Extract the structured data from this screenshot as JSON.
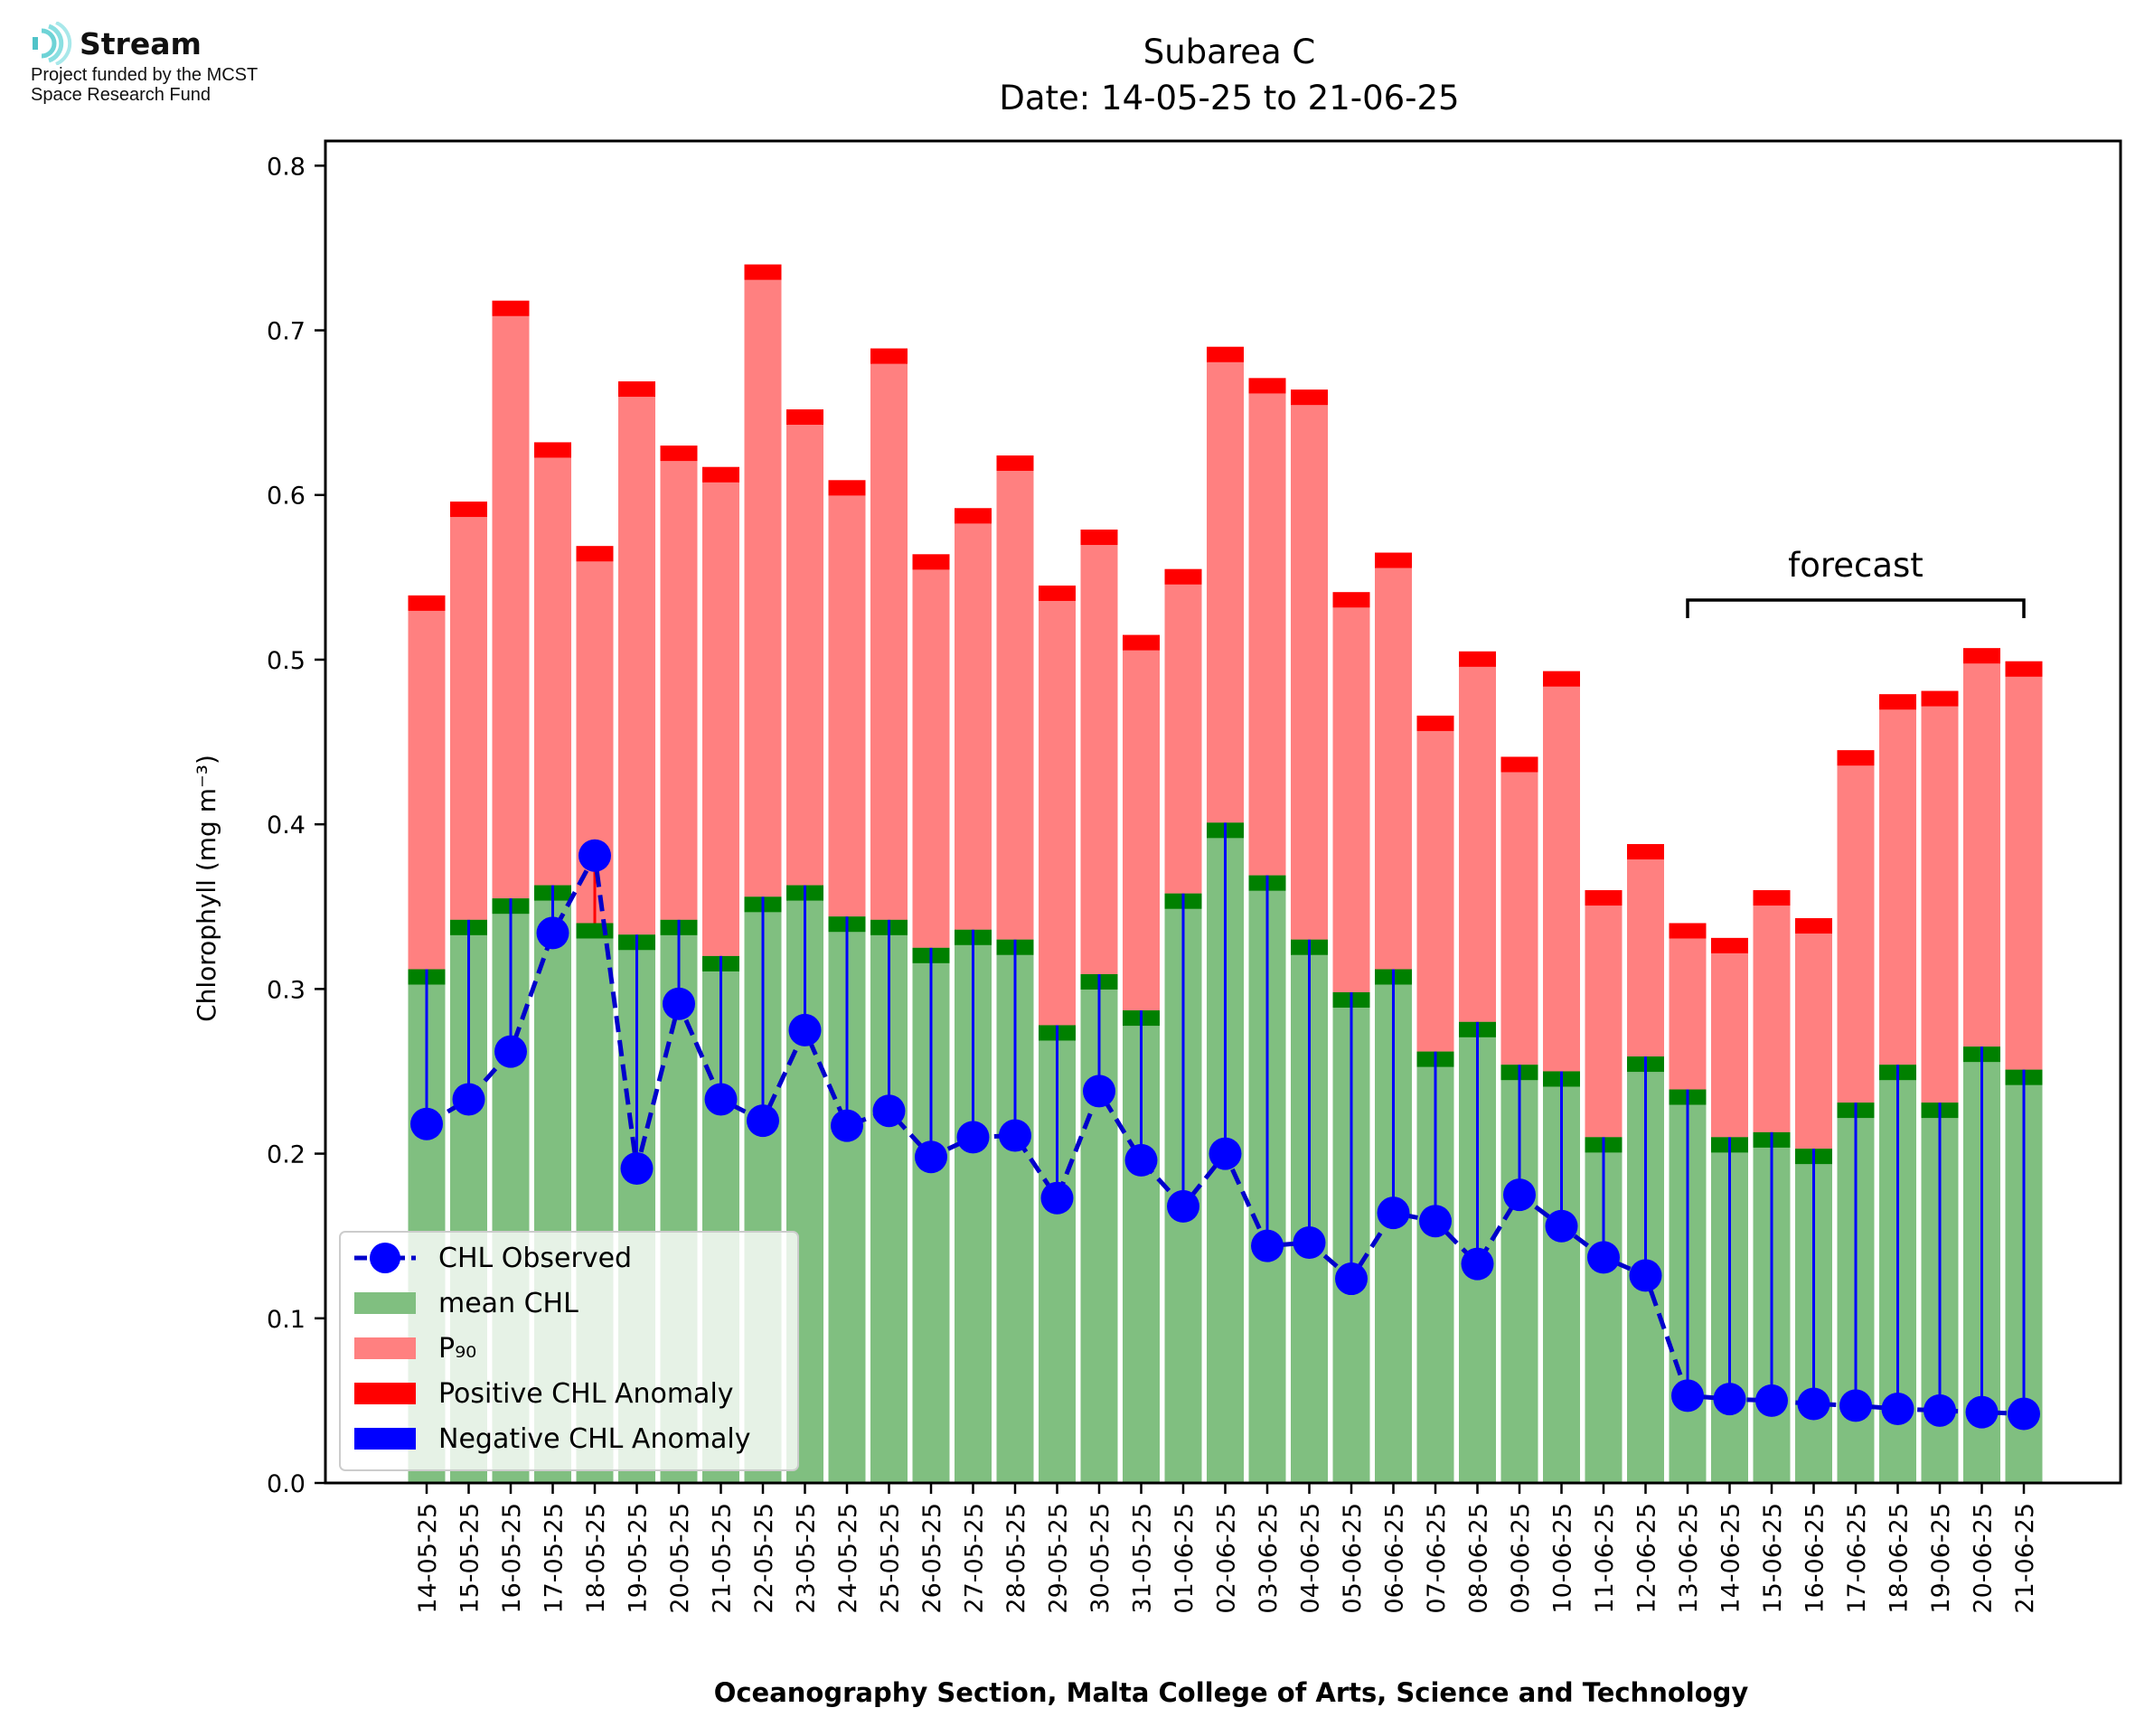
{
  "logo": {
    "name": "Stream",
    "funding_line1": "Project funded by the MCST",
    "funding_line2": "Space Research Fund"
  },
  "colors": {
    "mean_bar": "#80bf80",
    "p90_bar": "#ff8080",
    "mean_cap": "#008000",
    "positive_anomaly": "#ff0000",
    "negative_anomaly": "#0000ff",
    "observed_line": "#0000cc"
  },
  "chart_data": {
    "type": "bar",
    "title": "Subarea C",
    "subtitle": "Date: 14-05-25 to 21-06-25",
    "xlabel": "Oceanography Section, Malta College of Arts, Science and Technology",
    "ylabel": "Chlorophyll (mg m⁻³)",
    "ylim": [
      0,
      0.815
    ],
    "yticks": [
      "0.0",
      "0.1",
      "0.2",
      "0.3",
      "0.4",
      "0.5",
      "0.6",
      "0.7",
      "0.8"
    ],
    "categories": [
      "14-05-25",
      "15-05-25",
      "16-05-25",
      "17-05-25",
      "18-05-25",
      "19-05-25",
      "20-05-25",
      "21-05-25",
      "22-05-25",
      "23-05-25",
      "24-05-25",
      "25-05-25",
      "26-05-25",
      "27-05-25",
      "28-05-25",
      "29-05-25",
      "30-05-25",
      "31-05-25",
      "01-06-25",
      "02-06-25",
      "03-06-25",
      "04-06-25",
      "05-06-25",
      "06-06-25",
      "07-06-25",
      "08-06-25",
      "09-06-25",
      "10-06-25",
      "11-06-25",
      "12-06-25",
      "13-06-25",
      "14-06-25",
      "15-06-25",
      "16-06-25",
      "17-06-25",
      "18-06-25",
      "19-06-25",
      "20-06-25",
      "21-06-25"
    ],
    "series": [
      {
        "name": "CHL Observed",
        "values": [
          0.218,
          0.233,
          0.262,
          0.334,
          0.381,
          0.191,
          0.291,
          0.233,
          0.22,
          0.275,
          0.217,
          0.226,
          0.198,
          0.21,
          0.211,
          0.173,
          0.238,
          0.196,
          0.168,
          0.2,
          0.144,
          0.146,
          0.124,
          0.164,
          0.159,
          0.133,
          0.175,
          0.156,
          0.137,
          0.126,
          0.053,
          0.051,
          0.05,
          0.048,
          0.047,
          0.045,
          0.044,
          0.043,
          0.042
        ]
      },
      {
        "name": "mean CHL",
        "values": [
          0.312,
          0.342,
          0.355,
          0.363,
          0.34,
          0.333,
          0.342,
          0.32,
          0.356,
          0.363,
          0.344,
          0.342,
          0.325,
          0.336,
          0.33,
          0.278,
          0.309,
          0.287,
          0.358,
          0.401,
          0.369,
          0.33,
          0.298,
          0.312,
          0.262,
          0.28,
          0.254,
          0.25,
          0.21,
          0.259,
          0.239,
          0.21,
          0.213,
          0.203,
          0.231,
          0.254,
          0.231,
          0.265,
          0.251
        ]
      },
      {
        "name": "P₉₀",
        "values": [
          0.539,
          0.596,
          0.718,
          0.632,
          0.569,
          0.669,
          0.63,
          0.617,
          0.74,
          0.652,
          0.609,
          0.689,
          0.564,
          0.592,
          0.624,
          0.545,
          0.579,
          0.515,
          0.555,
          0.69,
          0.671,
          0.664,
          0.541,
          0.565,
          0.466,
          0.505,
          0.441,
          0.493,
          0.36,
          0.388,
          0.34,
          0.331,
          0.36,
          0.343,
          0.445,
          0.479,
          0.481,
          0.507,
          0.499
        ]
      },
      {
        "name": "Positive CHL Anomaly"
      },
      {
        "name": "Negative CHL Anomaly"
      }
    ],
    "annotations": [
      {
        "text": "forecast",
        "from": "13-06-25",
        "to": "21-06-25"
      }
    ],
    "legend_placement": "lower-left",
    "grid": false
  }
}
